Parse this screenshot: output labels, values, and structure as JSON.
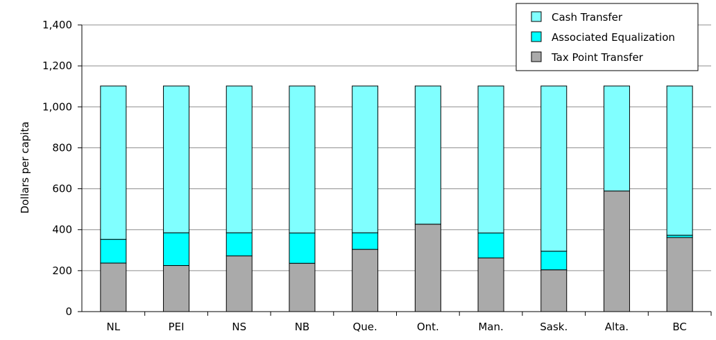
{
  "chart_data": {
    "type": "bar",
    "stacked": true,
    "categories": [
      "NL",
      "PEI",
      "NS",
      "NB",
      "Que.",
      "Ont.",
      "Man.",
      "Sask.",
      "Alta.",
      "BC"
    ],
    "series": [
      {
        "name": "Tax Point Transfer",
        "color": "#aaaaaa",
        "values": [
          237,
          225,
          272,
          236,
          304,
          427,
          262,
          204,
          589,
          362
        ]
      },
      {
        "name": "Associated Equalization",
        "color": "#00ffff",
        "values": [
          116,
          160,
          113,
          148,
          81,
          0,
          122,
          91,
          0,
          11
        ]
      },
      {
        "name": "Cash Transfer",
        "color": "#80ffff",
        "values": [
          749,
          717,
          717,
          718,
          717,
          675,
          718,
          807,
          513,
          729
        ]
      }
    ],
    "legend_order": [
      "Cash Transfer",
      "Associated Equalization",
      "Tax Point Transfer"
    ],
    "ylabel": "Dollars per capita",
    "ylim": [
      0,
      1400
    ],
    "yticks": [
      0,
      200,
      400,
      600,
      800,
      1000,
      1200,
      1400
    ],
    "ytick_labels": [
      "0",
      "200",
      "400",
      "600",
      "800",
      "1,000",
      "1,200",
      "1,400"
    ],
    "grid": true,
    "legend_position": "top-right"
  }
}
